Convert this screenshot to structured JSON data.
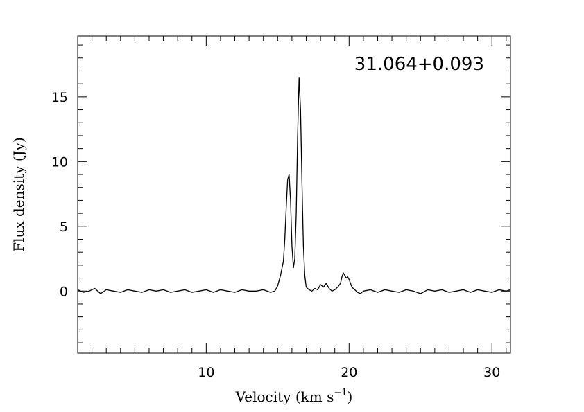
{
  "chart_data": {
    "type": "line",
    "title": "",
    "annotation": "31.064+0.093",
    "xlabel": "Velocity (km s",
    "xlabel_sup": "−1",
    "xlabel_end": ")",
    "ylabel": "Flux density (Jy)",
    "xlim": [
      1.0,
      31.3
    ],
    "ylim": [
      -4.8,
      19.7
    ],
    "x_ticks": [
      10,
      20,
      30
    ],
    "x_tick_labels": [
      "10",
      "20",
      "30"
    ],
    "y_ticks": [
      0,
      5,
      10,
      15
    ],
    "y_tick_labels": [
      "0",
      "5",
      "10",
      "15"
    ],
    "x_minor_step": 1,
    "y_minor_step": 1,
    "grid": false,
    "line_color": "#000000",
    "series": [
      {
        "x": [
          1.0,
          1.4,
          1.8,
          2.2,
          2.6,
          3.0,
          3.5,
          4.0,
          4.5,
          5.0,
          5.5,
          6.0,
          6.5,
          7.0,
          7.5,
          8.0,
          8.5,
          9.0,
          9.5,
          10.0,
          10.5,
          11.0,
          11.5,
          12.0,
          12.5,
          13.0,
          13.5,
          14.0,
          14.5,
          14.8,
          15.0,
          15.2,
          15.4,
          15.5,
          15.6,
          15.7,
          15.8,
          15.9,
          16.0,
          16.1,
          16.2,
          16.3,
          16.4,
          16.5,
          16.6,
          16.7,
          16.8,
          16.9,
          17.0,
          17.2,
          17.4,
          17.6,
          17.8,
          18.0,
          18.2,
          18.4,
          18.6,
          18.8,
          19.0,
          19.2,
          19.4,
          19.5,
          19.6,
          19.7,
          19.8,
          19.9,
          20.0,
          20.1,
          20.2,
          20.4,
          20.6,
          20.8,
          21.0,
          21.5,
          22.0,
          22.5,
          23.0,
          23.5,
          24.0,
          24.5,
          25.0,
          25.5,
          26.0,
          26.5,
          27.0,
          27.5,
          28.0,
          28.5,
          29.0,
          29.5,
          30.0,
          30.5,
          31.0,
          31.3
        ],
        "y": [
          0.1,
          -0.1,
          0.0,
          0.2,
          -0.2,
          0.1,
          0.0,
          -0.1,
          0.1,
          0.0,
          -0.1,
          0.1,
          0.0,
          0.1,
          -0.1,
          0.0,
          0.1,
          -0.1,
          0.0,
          0.1,
          -0.1,
          0.1,
          0.0,
          -0.1,
          0.1,
          0.0,
          0.0,
          0.1,
          -0.1,
          0.0,
          0.4,
          1.2,
          2.3,
          4.0,
          6.5,
          8.6,
          9.0,
          7.0,
          3.5,
          1.8,
          2.5,
          6.0,
          12.0,
          16.5,
          14.0,
          8.5,
          3.5,
          1.2,
          0.3,
          0.1,
          0.0,
          0.2,
          0.1,
          0.5,
          0.3,
          0.6,
          0.2,
          0.0,
          0.1,
          0.3,
          0.6,
          1.1,
          1.4,
          1.2,
          1.0,
          1.1,
          0.9,
          0.6,
          0.3,
          0.1,
          -0.1,
          -0.2,
          0.0,
          0.1,
          -0.1,
          0.1,
          0.0,
          -0.1,
          0.1,
          0.0,
          -0.2,
          0.1,
          0.0,
          0.1,
          -0.1,
          0.0,
          0.1,
          -0.1,
          0.1,
          0.0,
          -0.1,
          0.1,
          0.0,
          0.1
        ]
      }
    ]
  }
}
